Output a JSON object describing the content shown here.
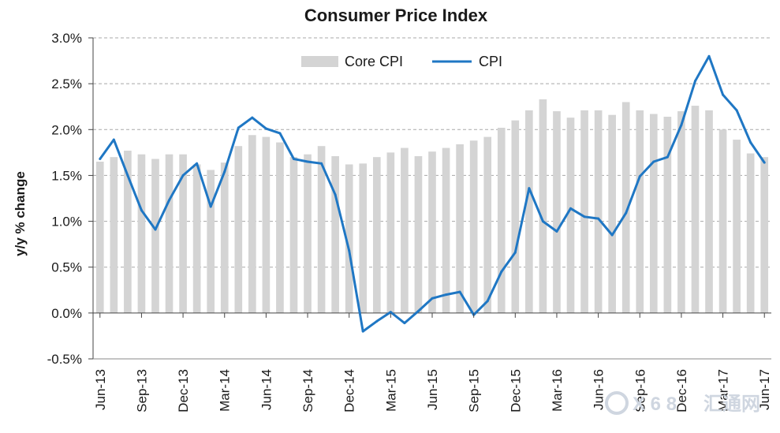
{
  "chart_data": {
    "type": "bar",
    "title": "Consumer  Price Index",
    "xlabel": "",
    "ylabel": "y/y % change",
    "ylim": [
      -0.5,
      3.0
    ],
    "yticks": [
      "3.0%",
      "2.5%",
      "2.0%",
      "1.5%",
      "1.0%",
      "0.5%",
      "0.0%",
      "-0.5%"
    ],
    "ytick_values": [
      3.0,
      2.5,
      2.0,
      1.5,
      1.0,
      0.5,
      0.0,
      -0.5
    ],
    "grid": true,
    "legend_position": "top-center",
    "categories": [
      "Jun-13",
      "Jul-13",
      "Aug-13",
      "Sep-13",
      "Oct-13",
      "Nov-13",
      "Dec-13",
      "Jan-14",
      "Feb-14",
      "Mar-14",
      "Apr-14",
      "May-14",
      "Jun-14",
      "Jul-14",
      "Aug-14",
      "Sep-14",
      "Oct-14",
      "Nov-14",
      "Dec-14",
      "Jan-15",
      "Feb-15",
      "Mar-15",
      "Apr-15",
      "May-15",
      "Jun-15",
      "Jul-15",
      "Aug-15",
      "Sep-15",
      "Oct-15",
      "Nov-15",
      "Dec-15",
      "Jan-16",
      "Feb-16",
      "Mar-16",
      "Apr-16",
      "May-16",
      "Jun-16",
      "Jul-16",
      "Aug-16",
      "Sep-16",
      "Oct-16",
      "Nov-16",
      "Dec-16",
      "Jan-17",
      "Feb-17",
      "Mar-17",
      "Apr-17",
      "May-17",
      "Jun-17"
    ],
    "x_tick_labels": [
      {
        "index": 0,
        "label": "Jun-13"
      },
      {
        "index": 3,
        "label": "Sep-13"
      },
      {
        "index": 6,
        "label": "Dec-13"
      },
      {
        "index": 9,
        "label": "Mar-14"
      },
      {
        "index": 12,
        "label": "Jun-14"
      },
      {
        "index": 15,
        "label": "Sep-14"
      },
      {
        "index": 18,
        "label": "Dec-14"
      },
      {
        "index": 21,
        "label": "Mar-15"
      },
      {
        "index": 24,
        "label": "Jun-15"
      },
      {
        "index": 27,
        "label": "Sep-15"
      },
      {
        "index": 30,
        "label": "Dec-15"
      },
      {
        "index": 33,
        "label": "Mar-16"
      },
      {
        "index": 36,
        "label": "Jun-16"
      },
      {
        "index": 39,
        "label": "Sep-16"
      },
      {
        "index": 42,
        "label": "Dec-16"
      },
      {
        "index": 45,
        "label": "Mar-17"
      },
      {
        "index": 48,
        "label": "Jun-17"
      }
    ],
    "series": [
      {
        "name": "Core CPI",
        "type": "bar",
        "color": "#d4d4d4",
        "values": [
          1.65,
          1.7,
          1.77,
          1.73,
          1.68,
          1.73,
          1.73,
          1.62,
          1.56,
          1.64,
          1.82,
          1.94,
          1.92,
          1.86,
          1.7,
          1.73,
          1.82,
          1.71,
          1.62,
          1.63,
          1.7,
          1.75,
          1.8,
          1.71,
          1.76,
          1.8,
          1.84,
          1.88,
          1.92,
          2.02,
          2.1,
          2.21,
          2.33,
          2.2,
          2.13,
          2.21,
          2.21,
          2.16,
          2.3,
          2.21,
          2.17,
          2.14,
          2.2,
          2.26,
          2.21,
          2.0,
          1.89,
          1.74,
          1.7
        ]
      },
      {
        "name": "CPI",
        "type": "line",
        "color": "#1f77c4",
        "values": [
          1.68,
          1.89,
          1.5,
          1.12,
          0.91,
          1.23,
          1.5,
          1.63,
          1.16,
          1.54,
          2.02,
          2.13,
          2.01,
          1.96,
          1.68,
          1.65,
          1.63,
          1.29,
          0.68,
          -0.2,
          -0.09,
          0.01,
          -0.11,
          0.02,
          0.16,
          0.2,
          0.23,
          -0.02,
          0.13,
          0.45,
          0.66,
          1.36,
          1.0,
          0.89,
          1.14,
          1.05,
          1.03,
          0.85,
          1.09,
          1.49,
          1.65,
          1.7,
          2.05,
          2.53,
          2.8,
          2.38,
          2.21,
          1.86,
          1.64
        ]
      }
    ]
  },
  "watermark": "汇通网"
}
